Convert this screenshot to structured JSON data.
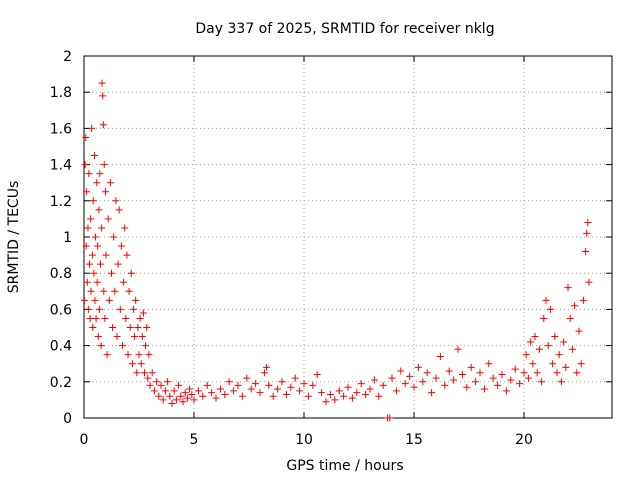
{
  "chart_data": {
    "type": "scatter",
    "title": "Day 337 of 2025, SRMTID for receiver nklg",
    "xlabel": "GPS time / hours",
    "ylabel": "SRMTID / TECUs",
    "xlim": [
      0,
      24
    ],
    "ylim": [
      0,
      2
    ],
    "xticks": [
      0,
      5,
      10,
      15,
      20
    ],
    "xtick_labels": [
      "0",
      "5",
      "10",
      "15",
      "20"
    ],
    "yticks": [
      0,
      0.2,
      0.4,
      0.6,
      0.8,
      1,
      1.2,
      1.4,
      1.6,
      1.8,
      2
    ],
    "ytick_labels": [
      "0",
      "0.2",
      "0.4",
      "0.6",
      "0.8",
      "1",
      "1.2",
      "1.4",
      "1.6",
      "1.8",
      "2"
    ],
    "grid": true,
    "marker": "+",
    "color": "#ff0000",
    "series": [
      {
        "name": "SRMTID",
        "points": [
          [
            0.02,
            0.65
          ],
          [
            0.05,
            1.4
          ],
          [
            0.08,
            1.55
          ],
          [
            0.1,
            0.95
          ],
          [
            0.12,
            1.25
          ],
          [
            0.15,
            0.75
          ],
          [
            0.18,
            1.05
          ],
          [
            0.2,
            0.6
          ],
          [
            0.22,
            1.35
          ],
          [
            0.25,
            0.85
          ],
          [
            0.28,
            0.55
          ],
          [
            0.3,
            1.1
          ],
          [
            0.32,
            0.7
          ],
          [
            0.35,
            1.6
          ],
          [
            0.38,
            0.9
          ],
          [
            0.4,
            0.5
          ],
          [
            0.42,
            1.2
          ],
          [
            0.45,
            0.8
          ],
          [
            0.48,
            1.45
          ],
          [
            0.5,
            0.65
          ],
          [
            0.52,
            1.0
          ],
          [
            0.55,
            0.55
          ],
          [
            0.58,
            1.3
          ],
          [
            0.6,
            0.75
          ],
          [
            0.62,
            0.95
          ],
          [
            0.65,
            0.45
          ],
          [
            0.68,
            1.15
          ],
          [
            0.7,
            0.6
          ],
          [
            0.72,
            1.35
          ],
          [
            0.75,
            0.85
          ],
          [
            0.78,
            0.4
          ],
          [
            0.8,
            1.05
          ],
          [
            0.82,
            1.85
          ],
          [
            0.85,
            1.78
          ],
          [
            0.88,
            1.62
          ],
          [
            0.9,
            0.7
          ],
          [
            0.92,
            1.4
          ],
          [
            0.95,
            0.55
          ],
          [
            0.98,
            1.25
          ],
          [
            1.0,
            0.9
          ],
          [
            1.05,
            0.35
          ],
          [
            1.1,
            1.1
          ],
          [
            1.15,
            0.65
          ],
          [
            1.2,
            1.3
          ],
          [
            1.25,
            0.8
          ],
          [
            1.3,
            0.5
          ],
          [
            1.35,
            1.0
          ],
          [
            1.4,
            0.7
          ],
          [
            1.45,
            1.2
          ],
          [
            1.5,
            0.45
          ],
          [
            1.55,
            0.85
          ],
          [
            1.6,
            1.15
          ],
          [
            1.65,
            0.6
          ],
          [
            1.7,
            0.95
          ],
          [
            1.75,
            0.4
          ],
          [
            1.8,
            0.75
          ],
          [
            1.85,
            1.05
          ],
          [
            1.9,
            0.55
          ],
          [
            1.95,
            0.9
          ],
          [
            2.0,
            0.35
          ],
          [
            2.05,
            0.7
          ],
          [
            2.1,
            0.5
          ],
          [
            2.15,
            0.8
          ],
          [
            2.2,
            0.3
          ],
          [
            2.25,
            0.6
          ],
          [
            2.3,
            0.45
          ],
          [
            2.35,
            0.65
          ],
          [
            2.4,
            0.25
          ],
          [
            2.45,
            0.5
          ],
          [
            2.5,
            0.35
          ],
          [
            2.55,
            0.55
          ],
          [
            2.6,
            0.3
          ],
          [
            2.65,
            0.45
          ],
          [
            2.7,
            0.58
          ],
          [
            2.75,
            0.25
          ],
          [
            2.8,
            0.4
          ],
          [
            2.85,
            0.5
          ],
          [
            2.9,
            0.22
          ],
          [
            2.95,
            0.35
          ],
          [
            3.0,
            0.18
          ],
          [
            3.1,
            0.25
          ],
          [
            3.2,
            0.15
          ],
          [
            3.3,
            0.2
          ],
          [
            3.4,
            0.12
          ],
          [
            3.5,
            0.18
          ],
          [
            3.6,
            0.1
          ],
          [
            3.7,
            0.15
          ],
          [
            3.8,
            0.2
          ],
          [
            3.9,
            0.12
          ],
          [
            4.0,
            0.08
          ],
          [
            4.1,
            0.15
          ],
          [
            4.2,
            0.1
          ],
          [
            4.3,
            0.18
          ],
          [
            4.4,
            0.12
          ],
          [
            4.5,
            0.09
          ],
          [
            4.6,
            0.14
          ],
          [
            4.7,
            0.11
          ],
          [
            4.8,
            0.16
          ],
          [
            4.9,
            0.13
          ],
          [
            5.0,
            0.1
          ],
          [
            5.2,
            0.15
          ],
          [
            5.4,
            0.12
          ],
          [
            5.6,
            0.18
          ],
          [
            5.8,
            0.14
          ],
          [
            6.0,
            0.11
          ],
          [
            6.2,
            0.16
          ],
          [
            6.4,
            0.13
          ],
          [
            6.6,
            0.2
          ],
          [
            6.8,
            0.15
          ],
          [
            7.0,
            0.18
          ],
          [
            7.2,
            0.12
          ],
          [
            7.4,
            0.22
          ],
          [
            7.6,
            0.16
          ],
          [
            7.8,
            0.19
          ],
          [
            8.0,
            0.14
          ],
          [
            8.2,
            0.25
          ],
          [
            8.3,
            0.28
          ],
          [
            8.4,
            0.18
          ],
          [
            8.6,
            0.12
          ],
          [
            8.8,
            0.16
          ],
          [
            9.0,
            0.2
          ],
          [
            9.2,
            0.13
          ],
          [
            9.4,
            0.17
          ],
          [
            9.6,
            0.22
          ],
          [
            9.8,
            0.15
          ],
          [
            10.0,
            0.19
          ],
          [
            10.2,
            0.12
          ],
          [
            10.4,
            0.18
          ],
          [
            10.6,
            0.24
          ],
          [
            10.8,
            0.14
          ],
          [
            11.0,
            0.09
          ],
          [
            11.2,
            0.13
          ],
          [
            11.4,
            0.1
          ],
          [
            11.6,
            0.15
          ],
          [
            11.8,
            0.12
          ],
          [
            12.0,
            0.17
          ],
          [
            12.2,
            0.11
          ],
          [
            12.4,
            0.14
          ],
          [
            12.6,
            0.19
          ],
          [
            12.8,
            0.13
          ],
          [
            13.0,
            0.16
          ],
          [
            13.2,
            0.21
          ],
          [
            13.4,
            0.12
          ],
          [
            13.6,
            0.18
          ],
          [
            13.8,
            0.0
          ],
          [
            13.9,
            0.0
          ],
          [
            14.0,
            0.22
          ],
          [
            14.2,
            0.15
          ],
          [
            14.4,
            0.26
          ],
          [
            14.6,
            0.19
          ],
          [
            14.8,
            0.23
          ],
          [
            15.0,
            0.17
          ],
          [
            15.2,
            0.28
          ],
          [
            15.4,
            0.2
          ],
          [
            15.6,
            0.25
          ],
          [
            15.8,
            0.14
          ],
          [
            16.0,
            0.22
          ],
          [
            16.2,
            0.34
          ],
          [
            16.4,
            0.18
          ],
          [
            16.6,
            0.26
          ],
          [
            16.8,
            0.21
          ],
          [
            17.0,
            0.38
          ],
          [
            17.2,
            0.24
          ],
          [
            17.4,
            0.17
          ],
          [
            17.6,
            0.28
          ],
          [
            17.8,
            0.2
          ],
          [
            18.0,
            0.25
          ],
          [
            18.2,
            0.16
          ],
          [
            18.4,
            0.3
          ],
          [
            18.6,
            0.22
          ],
          [
            18.8,
            0.18
          ],
          [
            19.0,
            0.24
          ],
          [
            19.2,
            0.15
          ],
          [
            19.4,
            0.21
          ],
          [
            19.6,
            0.27
          ],
          [
            19.8,
            0.19
          ],
          [
            20.0,
            0.25
          ],
          [
            20.1,
            0.35
          ],
          [
            20.2,
            0.22
          ],
          [
            20.3,
            0.42
          ],
          [
            20.4,
            0.3
          ],
          [
            20.5,
            0.45
          ],
          [
            20.6,
            0.25
          ],
          [
            20.7,
            0.38
          ],
          [
            20.8,
            0.2
          ],
          [
            20.9,
            0.55
          ],
          [
            21.0,
            0.65
          ],
          [
            21.1,
            0.4
          ],
          [
            21.2,
            0.6
          ],
          [
            21.3,
            0.3
          ],
          [
            21.4,
            0.45
          ],
          [
            21.5,
            0.25
          ],
          [
            21.6,
            0.35
          ],
          [
            21.7,
            0.2
          ],
          [
            21.8,
            0.42
          ],
          [
            21.9,
            0.28
          ],
          [
            22.0,
            0.72
          ],
          [
            22.1,
            0.55
          ],
          [
            22.2,
            0.38
          ],
          [
            22.3,
            0.62
          ],
          [
            22.4,
            0.25
          ],
          [
            22.5,
            0.48
          ],
          [
            22.6,
            0.3
          ],
          [
            22.7,
            0.65
          ],
          [
            22.8,
            0.92
          ],
          [
            22.85,
            1.02
          ],
          [
            22.9,
            1.08
          ],
          [
            22.95,
            0.75
          ]
        ]
      }
    ]
  }
}
